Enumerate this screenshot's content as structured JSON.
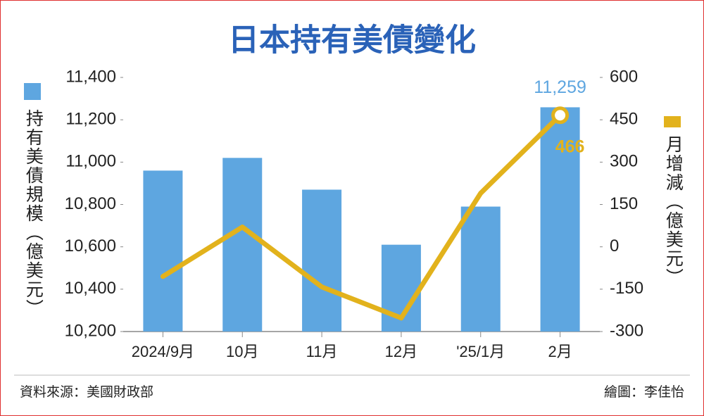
{
  "chart_data": {
    "type": "combo",
    "title": "日本持有美債變化",
    "categories": [
      "2024/9月",
      "10月",
      "11月",
      "12月",
      "'25/1月",
      "2月"
    ],
    "series": [
      {
        "name": "持有美債規模（億美元）",
        "type": "bar",
        "color": "#5ea6e0",
        "values": [
          10960,
          11020,
          10870,
          10610,
          10790,
          11259
        ],
        "value_labels": [
          null,
          null,
          null,
          null,
          null,
          "11,259"
        ]
      },
      {
        "name": "月增減（億美元）",
        "type": "line",
        "axis": "y2",
        "color": "#e2b21c",
        "values": [
          -105,
          70,
          -142,
          -252,
          190,
          466
        ]
      }
    ],
    "ylim": [
      10200,
      11400
    ],
    "yticks": [
      {
        "value": 10200,
        "label": "10,200"
      },
      {
        "value": 10400,
        "label": "10,400"
      },
      {
        "value": 10600,
        "label": "10,600"
      },
      {
        "value": 10800,
        "label": "10,800"
      },
      {
        "value": 11000,
        "label": "11,000"
      },
      {
        "value": 11200,
        "label": "11,200"
      },
      {
        "value": 11400,
        "label": "11,400"
      }
    ],
    "y2lim": [
      -300,
      600
    ],
    "y2ticks": [
      -300,
      -150,
      0,
      150,
      300,
      450,
      600
    ],
    "source": "資料來源：美國財政部",
    "credit": "繪圖：李佳怡"
  }
}
